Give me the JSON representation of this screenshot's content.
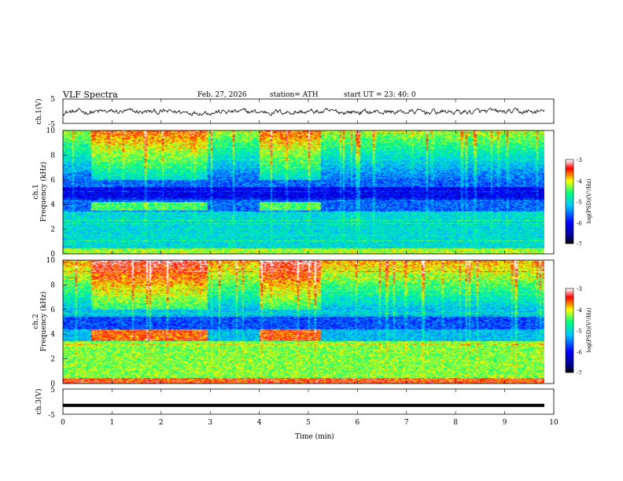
{
  "header": {
    "title": "VLF  Spectra",
    "date": "Feb. 27, 2026",
    "station": "station= ATH",
    "start_ut": "start  UT  =   23: 40: 0"
  },
  "chart_data": [
    {
      "type": "line",
      "name": "ch1-timeseries",
      "ylabel": "ch.1(V)",
      "ylim": [
        -5,
        5
      ],
      "yticks": [
        "5",
        "-5"
      ],
      "xlim": [
        0,
        10
      ],
      "description_values": {
        "baseline_V": 0.0,
        "noise_amplitude_V": 1.2
      }
    },
    {
      "type": "heatmap",
      "name": "ch1-spectrogram",
      "ylabel": "ch.1\nFrequency  (kHz)",
      "ylim": [
        0,
        10
      ],
      "yticks": [
        "0",
        "2",
        "4",
        "6",
        "8",
        "10"
      ],
      "xlim": [
        0,
        9.8
      ],
      "colorbar": {
        "label": "log(PSD)(V²/Hz)",
        "ticks": [
          "-3",
          "-4",
          "-5",
          "-6",
          "-7"
        ],
        "range": [
          -7,
          -3
        ]
      },
      "features": {
        "emission_band_kHz": [
          3.5,
          4.2
        ],
        "emission_intervals_min": [
          [
            0.55,
            2.95
          ],
          [
            4.0,
            5.25
          ]
        ],
        "baseline_logpsd": -5.6
      }
    },
    {
      "type": "heatmap",
      "name": "ch2-spectrogram",
      "ylabel": "ch.2\nFrequency  (kHz)",
      "ylim": [
        0,
        10
      ],
      "yticks": [
        "0",
        "2",
        "4",
        "6",
        "8",
        "10"
      ],
      "xlim": [
        0,
        9.8
      ],
      "colorbar": {
        "label": "log(PSD)(V²/Hz)",
        "ticks": [
          "-3",
          "-4",
          "-5",
          "-6",
          "-7"
        ],
        "range": [
          -7,
          -3
        ]
      },
      "features": {
        "emission_band_kHz": [
          3.5,
          4.4
        ],
        "emission_intervals_min": [
          [
            0.55,
            2.95
          ],
          [
            4.0,
            5.25
          ]
        ],
        "baseline_logpsd": -5.2
      }
    },
    {
      "type": "line",
      "name": "ch3-timeseries",
      "ylabel": "ch.3(V)",
      "ylim": [
        -5,
        5
      ],
      "yticks": [
        "5",
        "-5"
      ],
      "xlim": [
        0,
        10
      ],
      "values_constant_V": -1.5
    }
  ],
  "xaxis": {
    "label": "Time  (min)",
    "ticks": [
      "0",
      "1",
      "2",
      "3",
      "4",
      "5",
      "6",
      "7",
      "8",
      "9",
      "10"
    ]
  },
  "colors": {
    "colormap": [
      "#000000",
      "#0000ff",
      "#00c8ff",
      "#00ff80",
      "#ffff00",
      "#ff0000",
      "#ffffff"
    ]
  }
}
